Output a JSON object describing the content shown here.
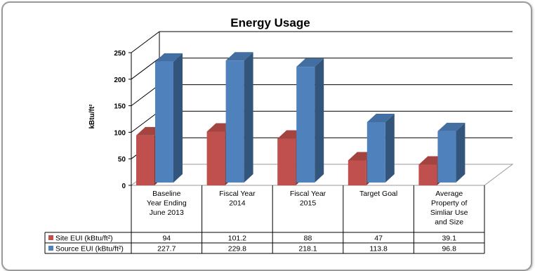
{
  "chart_data": {
    "type": "bar",
    "title": "Energy Usage",
    "ylabel": "kBtu/ft²",
    "xlabel": "",
    "ylim": [
      0,
      250
    ],
    "yticks": [
      0,
      50,
      100,
      150,
      200,
      250
    ],
    "grid": true,
    "categories": [
      [
        "Baseline",
        "Year Ending",
        "June 2013"
      ],
      [
        "Fiscal Year",
        "2014"
      ],
      [
        "Fiscal Year",
        "2015"
      ],
      [
        "Target Goal"
      ],
      [
        "Average",
        "Property of",
        "Simliar Use",
        "and Size"
      ]
    ],
    "series": [
      {
        "name": "Site EUI (kBtu/ft²)",
        "color": "#c0504d",
        "values": [
          94,
          101.2,
          88,
          47,
          39.1
        ]
      },
      {
        "name": "Source EUI (kBtu/ft²)",
        "color": "#4f81bd",
        "values": [
          227.7,
          229.8,
          218.1,
          113.8,
          96.8
        ]
      }
    ]
  }
}
